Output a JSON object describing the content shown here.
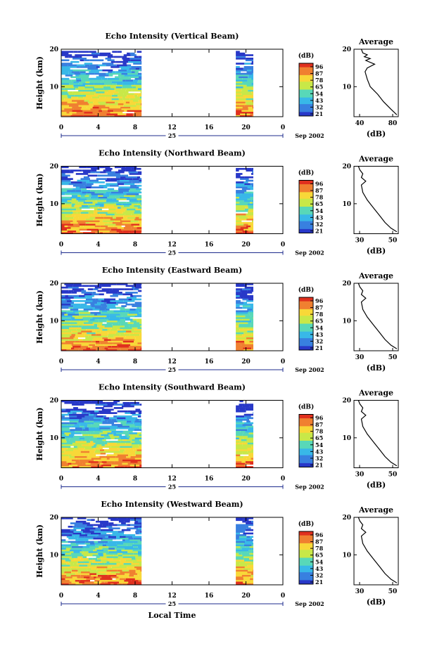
{
  "chart_data": [
    {
      "type": "heatmap",
      "title": "Echo Intensity (Vertical Beam)",
      "ylabel": "Height (km)",
      "ylim": [
        2,
        20
      ],
      "yticks": [
        "20",
        "10"
      ],
      "xlim": [
        0,
        24
      ],
      "xticks": [
        "0",
        "4",
        "8",
        "12",
        "16",
        "20",
        "0"
      ],
      "date_label": "25",
      "month_label": "Sep 2002",
      "colorbar": {
        "unit": "(dB)",
        "ticks": [
          "96",
          "87",
          "78",
          "65",
          "54",
          "43",
          "32",
          "21"
        ]
      },
      "data_segments": [
        [
          0,
          8.7
        ],
        [
          18.9,
          20.8
        ]
      ],
      "profile": {
        "title": "Average",
        "xlabel": "(dB)",
        "xticks": [
          "40",
          "80"
        ],
        "xlim": [
          30,
          90
        ],
        "heights": [
          2.5,
          4,
          6,
          8,
          10,
          12,
          14,
          15,
          16,
          17,
          17.5,
          18,
          18.5,
          19,
          20
        ],
        "values": [
          88,
          80,
          70,
          62,
          52,
          48,
          45,
          48,
          58,
          46,
          52,
          44,
          48,
          42,
          40
        ]
      }
    },
    {
      "type": "heatmap",
      "title": "Echo Intensity (Northward Beam)",
      "ylabel": "Height (km)",
      "ylim": [
        2,
        20
      ],
      "yticks": [
        "20",
        "10"
      ],
      "xlim": [
        0,
        24
      ],
      "xticks": [
        "0",
        "4",
        "8",
        "12",
        "16",
        "20",
        "0"
      ],
      "date_label": "25",
      "month_label": "Sep 2002",
      "colorbar": {
        "unit": "(dB)",
        "ticks": [
          "96",
          "87",
          "78",
          "65",
          "54",
          "43",
          "32",
          "21"
        ]
      },
      "data_segments": [
        [
          0,
          8.7
        ],
        [
          18.9,
          20.8
        ]
      ],
      "profile": {
        "title": "Average",
        "xlabel": "(dB)",
        "xticks": [
          "30",
          "50"
        ],
        "xlim": [
          25,
          55
        ],
        "heights": [
          2.5,
          3.5,
          5,
          7,
          9,
          11,
          13,
          15,
          16,
          17,
          18,
          19,
          20
        ],
        "values": [
          54,
          50,
          46,
          42,
          38,
          34,
          31,
          30,
          33,
          30,
          31,
          29,
          28
        ]
      }
    },
    {
      "type": "heatmap",
      "title": "Echo Intensity (Eastward Beam)",
      "ylabel": "Height (km)",
      "ylim": [
        2,
        20
      ],
      "yticks": [
        "20",
        "10"
      ],
      "xlim": [
        0,
        24
      ],
      "xticks": [
        "0",
        "4",
        "8",
        "12",
        "16",
        "20",
        "0"
      ],
      "date_label": "25",
      "month_label": "Sep 2002",
      "colorbar": {
        "unit": "(dB)",
        "ticks": [
          "96",
          "87",
          "78",
          "65",
          "54",
          "43",
          "32",
          "21"
        ]
      },
      "data_segments": [
        [
          0,
          8.7
        ],
        [
          18.9,
          20.8
        ]
      ],
      "profile": {
        "title": "Average",
        "xlabel": "(dB)",
        "xticks": [
          "30",
          "50"
        ],
        "xlim": [
          25,
          55
        ],
        "heights": [
          2.5,
          3.5,
          5,
          7,
          9,
          11,
          13,
          15,
          16,
          17,
          18,
          19,
          20
        ],
        "values": [
          54,
          50,
          46,
          42,
          38,
          34,
          31,
          30,
          33,
          30,
          31,
          29,
          28
        ]
      }
    },
    {
      "type": "heatmap",
      "title": "Echo Intensity (Southward Beam)",
      "ylabel": "Height (km)",
      "ylim": [
        2,
        20
      ],
      "yticks": [
        "20",
        "10"
      ],
      "xlim": [
        0,
        24
      ],
      "xticks": [
        "0",
        "4",
        "8",
        "12",
        "16",
        "20",
        "0"
      ],
      "date_label": "25",
      "month_label": "Sep 2002",
      "colorbar": {
        "unit": "(dB)",
        "ticks": [
          "96",
          "87",
          "78",
          "65",
          "54",
          "43",
          "32",
          "21"
        ]
      },
      "data_segments": [
        [
          0,
          8.7
        ],
        [
          18.9,
          20.8
        ]
      ],
      "profile": {
        "title": "Average",
        "xlabel": "(dB)",
        "xticks": [
          "30",
          "50"
        ],
        "xlim": [
          25,
          55
        ],
        "heights": [
          2.5,
          3.5,
          5,
          7,
          9,
          11,
          13,
          15,
          16,
          17,
          18,
          19,
          20
        ],
        "values": [
          54,
          50,
          46,
          42,
          38,
          34,
          31,
          30,
          33,
          30,
          31,
          29,
          28
        ]
      }
    },
    {
      "type": "heatmap",
      "title": "Echo Intensity (Westward Beam)",
      "ylabel": "Height (km)",
      "ylim": [
        2,
        20
      ],
      "yticks": [
        "20",
        "10"
      ],
      "xlim": [
        0,
        24
      ],
      "xticks": [
        "0",
        "4",
        "8",
        "12",
        "16",
        "20",
        "0"
      ],
      "date_label": "25",
      "month_label": "Sep 2002",
      "xlabel": "Local Time",
      "colorbar": {
        "unit": "(dB)",
        "ticks": [
          "96",
          "87",
          "78",
          "65",
          "54",
          "43",
          "32",
          "21"
        ]
      },
      "data_segments": [
        [
          0,
          8.7
        ],
        [
          18.9,
          20.8
        ]
      ],
      "profile": {
        "title": "Average",
        "xlabel": "(dB)",
        "xticks": [
          "30",
          "50"
        ],
        "xlim": [
          25,
          55
        ],
        "heights": [
          2.5,
          3.5,
          5,
          7,
          9,
          11,
          13,
          15,
          16,
          17,
          18,
          19,
          20
        ],
        "values": [
          54,
          50,
          46,
          42,
          38,
          34,
          31,
          30,
          33,
          30,
          31,
          29,
          28
        ]
      }
    }
  ],
  "colors": {
    "scale": [
      "#e0301e",
      "#f08030",
      "#f8d838",
      "#c8e848",
      "#58d8b8",
      "#38b8e8",
      "#3880e0",
      "#2838c8"
    ],
    "frame": "#000000",
    "time_axis": "#1c2b8c"
  }
}
